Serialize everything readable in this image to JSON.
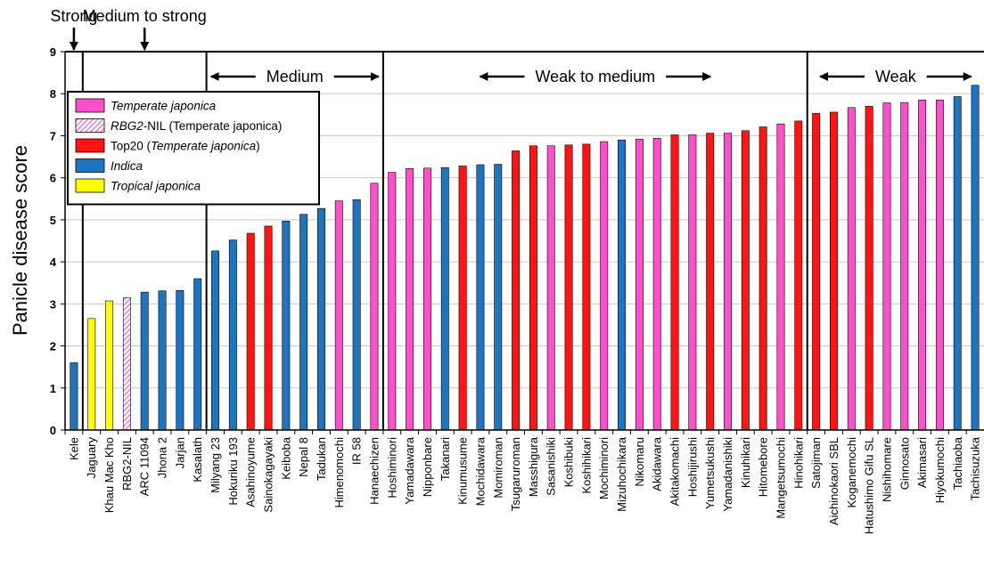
{
  "chart_data": {
    "type": "bar",
    "ylabel": "Panicle disease score",
    "ylim": [
      0,
      9
    ],
    "yticks": [
      "0",
      "1",
      "2",
      "3",
      "4",
      "5",
      "6",
      "7",
      "8",
      "9"
    ],
    "grid": true,
    "legend_position": "top-left",
    "colors": {
      "temperate": "#ff4fcb",
      "rbg2": "#ff4fcb",
      "top20": "#ff1414",
      "indica": "#1f74c0",
      "tropical": "#ffff00"
    },
    "legend": [
      {
        "group": "temperate",
        "prefix": "",
        "italic": "Temperate japonica",
        "suffix": ""
      },
      {
        "group": "rbg2",
        "prefix": "",
        "italic": "RBG2",
        "suffix": "-NIL (Temperate japonica)"
      },
      {
        "group": "top20",
        "prefix": "Top20 (",
        "italic": "Temperate japonica",
        "suffix": ")"
      },
      {
        "group": "indica",
        "prefix": "",
        "italic": "Indica",
        "suffix": ""
      },
      {
        "group": "tropical",
        "prefix": "",
        "italic": "Tropical japonica",
        "suffix": ""
      }
    ],
    "categories": [
      {
        "name": "Kele",
        "value": 1.6,
        "group": "indica"
      },
      {
        "name": "Jaguary",
        "value": 2.65,
        "group": "tropical"
      },
      {
        "name": "Khau Mac Kho",
        "value": 3.07,
        "group": "tropical"
      },
      {
        "name": "RBG2-NIL",
        "value": 3.15,
        "group": "rbg2"
      },
      {
        "name": "ARC 11094",
        "value": 3.28,
        "group": "indica"
      },
      {
        "name": "Jhona 2",
        "value": 3.31,
        "group": "indica"
      },
      {
        "name": "Jarjan",
        "value": 3.32,
        "group": "indica"
      },
      {
        "name": "Kasalath",
        "value": 3.6,
        "group": "indica"
      },
      {
        "name": "Milyang 23",
        "value": 4.26,
        "group": "indica"
      },
      {
        "name": "Hokuriku 193",
        "value": 4.52,
        "group": "indica"
      },
      {
        "name": "Asahinoyume",
        "value": 4.68,
        "group": "top20"
      },
      {
        "name": "Sainokagayaki",
        "value": 4.85,
        "group": "top20"
      },
      {
        "name": "Keiboba",
        "value": 4.97,
        "group": "indica"
      },
      {
        "name": "Nepal 8",
        "value": 5.13,
        "group": "indica"
      },
      {
        "name": "Tadukan",
        "value": 5.27,
        "group": "indica"
      },
      {
        "name": "Himenomochi",
        "value": 5.45,
        "group": "temperate"
      },
      {
        "name": "IR 58",
        "value": 5.48,
        "group": "indica"
      },
      {
        "name": "Hanaechizen",
        "value": 5.87,
        "group": "temperate"
      },
      {
        "name": "Hoshiminori",
        "value": 6.13,
        "group": "temperate"
      },
      {
        "name": "Yamadawara",
        "value": 6.22,
        "group": "temperate"
      },
      {
        "name": "Nipponbare",
        "value": 6.23,
        "group": "temperate"
      },
      {
        "name": "Takanari",
        "value": 6.24,
        "group": "indica"
      },
      {
        "name": "Kinumusume",
        "value": 6.28,
        "group": "top20"
      },
      {
        "name": "Mochidawara",
        "value": 6.31,
        "group": "indica"
      },
      {
        "name": "Momiroman",
        "value": 6.32,
        "group": "indica"
      },
      {
        "name": "Tsugaruroman",
        "value": 6.64,
        "group": "top20"
      },
      {
        "name": "Masshigura",
        "value": 6.76,
        "group": "top20"
      },
      {
        "name": "Sasanishiki",
        "value": 6.76,
        "group": "temperate"
      },
      {
        "name": "Koshibuki",
        "value": 6.78,
        "group": "top20"
      },
      {
        "name": "Koshihikari",
        "value": 6.8,
        "group": "top20"
      },
      {
        "name": "Mochiminori",
        "value": 6.86,
        "group": "temperate"
      },
      {
        "name": "Mizuhochikara",
        "value": 6.9,
        "group": "indica"
      },
      {
        "name": "Nikomaru",
        "value": 6.92,
        "group": "temperate"
      },
      {
        "name": "Akidawara",
        "value": 6.94,
        "group": "temperate"
      },
      {
        "name": "Akitakomachi",
        "value": 7.02,
        "group": "top20"
      },
      {
        "name": "Hoshijirushi",
        "value": 7.02,
        "group": "temperate"
      },
      {
        "name": "Yumetsukushi",
        "value": 7.06,
        "group": "top20"
      },
      {
        "name": "Yamadanishiki",
        "value": 7.06,
        "group": "temperate"
      },
      {
        "name": "Kinuhikari",
        "value": 7.12,
        "group": "top20"
      },
      {
        "name": "Hitomebore",
        "value": 7.21,
        "group": "top20"
      },
      {
        "name": "Mangetsumochi",
        "value": 7.28,
        "group": "temperate"
      },
      {
        "name": "Hinohikari",
        "value": 7.35,
        "group": "top20"
      },
      {
        "name": "Satojiman",
        "value": 7.53,
        "group": "top20"
      },
      {
        "name": "Aichinokaori SBL",
        "value": 7.56,
        "group": "top20"
      },
      {
        "name": "Koganemochi",
        "value": 7.67,
        "group": "temperate"
      },
      {
        "name": "Hatushimo Gifu SL",
        "value": 7.7,
        "group": "top20"
      },
      {
        "name": "Nishihomare",
        "value": 7.78,
        "group": "temperate"
      },
      {
        "name": "Ginnosato",
        "value": 7.79,
        "group": "temperate"
      },
      {
        "name": "Akimasari",
        "value": 7.85,
        "group": "temperate"
      },
      {
        "name": "Hiyokumochi",
        "value": 7.85,
        "group": "temperate"
      },
      {
        "name": "Tachiaoba",
        "value": 7.93,
        "group": "indica"
      },
      {
        "name": "Tachisuzuka",
        "value": 8.2,
        "group": "indica"
      }
    ],
    "annotations": [
      {
        "label": "Strong",
        "type": "down-arrow",
        "at": 0.5
      },
      {
        "label": "Medium to strong",
        "type": "down-arrow",
        "at": 4.5
      },
      {
        "label": "Medium",
        "type": "range",
        "from": 8,
        "to": 18
      },
      {
        "label": "Weak to medium",
        "type": "range",
        "from": 18,
        "to": 42
      },
      {
        "label": "Weak",
        "type": "range",
        "from": 42,
        "to": 52
      }
    ]
  }
}
